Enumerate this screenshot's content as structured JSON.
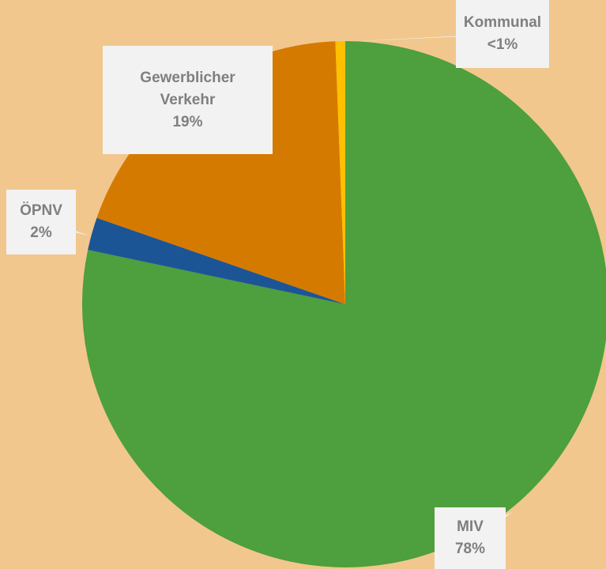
{
  "chart_data": {
    "type": "pie",
    "categories": [
      "MIV",
      "ÖPNV",
      "Gewerblicher Verkehr",
      "Kommunal"
    ],
    "values": [
      78,
      2,
      19,
      0.6
    ],
    "value_labels": [
      "78%",
      "2%",
      "19%",
      "<1%"
    ],
    "colors": [
      "#4e9f3d",
      "#1c5596",
      "#d57a00",
      "#ffc000"
    ]
  }
}
